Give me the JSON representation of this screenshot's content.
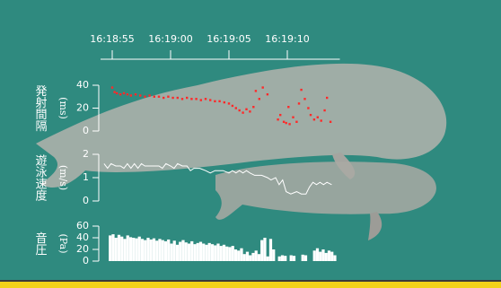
{
  "chart_data": [
    {
      "type": "scatter",
      "ylabel": "発射間隔",
      "yunit": "(ms)",
      "color": "#ff2a2a",
      "xlim": [
        58734,
        58754.5
      ],
      "xticks": [
        {
          "value": 58735,
          "label": "16:18:55"
        },
        {
          "value": 58740,
          "label": "16:19:00"
        },
        {
          "value": 58745,
          "label": "16:19:05"
        },
        {
          "value": 58750,
          "label": "16:19:10"
        }
      ],
      "ylim": [
        0,
        40
      ],
      "yticks": [
        0,
        20,
        40
      ],
      "x": [
        58735.0,
        58735.2,
        58735.4,
        58735.7,
        58736.0,
        58736.3,
        58736.6,
        58737.0,
        58737.4,
        58737.8,
        58738.2,
        58738.6,
        58739.0,
        58739.4,
        58739.8,
        58740.2,
        58740.6,
        58741.0,
        58741.4,
        58741.8,
        58742.2,
        58742.6,
        58743.0,
        58743.4,
        58743.8,
        58744.2,
        58744.6,
        58745.0,
        58745.3,
        58745.6,
        58745.9,
        58746.2,
        58746.5,
        58746.8,
        58747.1,
        58747.3,
        58747.6,
        58747.9,
        58748.3,
        58749.2,
        58749.4,
        58749.7,
        58749.9,
        58750.1,
        58750.2,
        58750.5,
        58750.8,
        58751.0,
        58751.2,
        58751.5,
        58751.8,
        58752.0,
        58752.3,
        58752.6,
        58752.9,
        58753.2,
        58753.4,
        58753.7
      ],
      "values": [
        38,
        34,
        33,
        32,
        33,
        32,
        31,
        32,
        31,
        30,
        31,
        30,
        30,
        29,
        30,
        29,
        29,
        28,
        29,
        28,
        28,
        27,
        28,
        27,
        26,
        26,
        25,
        24,
        22,
        20,
        18,
        16,
        19,
        17,
        21,
        35,
        28,
        38,
        32,
        10,
        14,
        8,
        7,
        21,
        6,
        12,
        8,
        24,
        36,
        28,
        20,
        14,
        10,
        12,
        9,
        18,
        29,
        8
      ]
    },
    {
      "type": "line",
      "ylabel": "遊泳速度",
      "yunit": "(m/s)",
      "color": "#ffffff",
      "xlim": [
        58734,
        58754.5
      ],
      "ylim": [
        0,
        2
      ],
      "yticks": [
        0,
        1,
        2
      ],
      "x": [
        58734.3,
        58734.6,
        58734.9,
        58735.3,
        58735.7,
        58736.0,
        58736.3,
        58736.6,
        58736.9,
        58737.2,
        58737.5,
        58737.8,
        58738.5,
        58739.0,
        58739.3,
        58739.6,
        58740.0,
        58740.3,
        58740.6,
        58741.0,
        58741.4,
        58741.7,
        58742.0,
        58742.5,
        58743.0,
        58743.4,
        58743.8,
        58744.5,
        58745.0,
        58745.3,
        58745.6,
        58745.9,
        58746.2,
        58746.5,
        58746.8,
        58747.2,
        58747.8,
        58748.3,
        58748.6,
        58749.0,
        58749.3,
        58749.6,
        58749.9,
        58750.3,
        58750.8,
        58751.2,
        58751.6,
        58751.9,
        58752.2,
        58752.5,
        58752.8,
        58753.1,
        58753.4,
        58753.8
      ],
      "values": [
        1.6,
        1.4,
        1.6,
        1.5,
        1.5,
        1.4,
        1.6,
        1.4,
        1.6,
        1.4,
        1.6,
        1.5,
        1.5,
        1.5,
        1.4,
        1.6,
        1.5,
        1.4,
        1.6,
        1.5,
        1.5,
        1.3,
        1.4,
        1.4,
        1.3,
        1.2,
        1.3,
        1.3,
        1.2,
        1.3,
        1.2,
        1.3,
        1.2,
        1.3,
        1.2,
        1.1,
        1.1,
        1.0,
        0.9,
        1.0,
        0.7,
        0.9,
        0.4,
        0.3,
        0.4,
        0.3,
        0.3,
        0.6,
        0.8,
        0.7,
        0.8,
        0.7,
        0.8,
        0.7
      ]
    },
    {
      "type": "bar",
      "ylabel": "音圧",
      "yunit": "(Pa)",
      "color": "#ffffff",
      "xlim": [
        58734,
        58754.5
      ],
      "ylim": [
        0,
        60
      ],
      "yticks": [
        0,
        20,
        40,
        60
      ],
      "x": [
        58734.7,
        58734.95,
        58735.2,
        58735.45,
        58735.7,
        58735.95,
        58736.2,
        58736.45,
        58736.7,
        58736.95,
        58737.2,
        58737.45,
        58737.7,
        58737.95,
        58738.2,
        58738.45,
        58738.7,
        58738.95,
        58739.2,
        58739.45,
        58739.7,
        58739.95,
        58740.2,
        58740.45,
        58740.7,
        58740.95,
        58741.2,
        58741.45,
        58741.7,
        58741.95,
        58742.2,
        58742.45,
        58742.7,
        58742.95,
        58743.2,
        58743.45,
        58743.7,
        58743.95,
        58744.2,
        58744.45,
        58744.7,
        58744.95,
        58745.2,
        58745.45,
        58745.7,
        58745.95,
        58746.2,
        58746.45,
        58746.7,
        58746.95,
        58747.2,
        58747.45,
        58747.7,
        58747.95,
        58748.2,
        58748.45,
        58748.7,
        58748.95,
        58749.2,
        58749.45,
        58749.7,
        58749.95,
        58750.2,
        58750.45,
        58750.7,
        58750.95,
        58751.2,
        58751.45,
        58751.7,
        58751.95,
        58752.2,
        58752.45,
        58752.7,
        58752.95,
        58753.2,
        58753.45,
        58753.7,
        58753.95
      ],
      "values": [
        44,
        46,
        40,
        45,
        42,
        38,
        44,
        41,
        40,
        39,
        42,
        38,
        36,
        40,
        37,
        39,
        35,
        38,
        36,
        34,
        37,
        30,
        35,
        28,
        33,
        36,
        32,
        30,
        34,
        29,
        31,
        33,
        30,
        28,
        31,
        29,
        27,
        30,
        26,
        28,
        25,
        24,
        26,
        20,
        18,
        22,
        12,
        16,
        10,
        14,
        18,
        12,
        36,
        40,
        8,
        38,
        20,
        null,
        8,
        10,
        9,
        null,
        10,
        9,
        null,
        null,
        11,
        10,
        null,
        null,
        18,
        22,
        16,
        20,
        14,
        18,
        16,
        10
      ]
    }
  ]
}
